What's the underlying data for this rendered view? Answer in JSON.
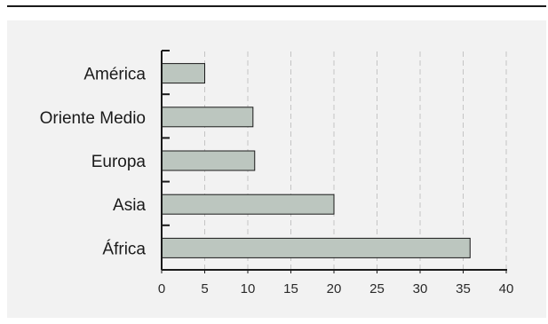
{
  "chart_data": {
    "type": "bar",
    "orientation": "horizontal",
    "categories": [
      "América",
      "Oriente Medio",
      "Europa",
      "Asia",
      "África"
    ],
    "values": [
      5,
      10.6,
      10.8,
      20,
      35.8
    ],
    "xlim": [
      0,
      40
    ],
    "xticks": [
      "0",
      "5",
      "10",
      "15",
      "20",
      "25",
      "30",
      "35",
      "40"
    ],
    "title": "",
    "xlabel": "",
    "ylabel": "",
    "grid": "vertical dashed",
    "legend": "none",
    "colors": {
      "bar_fill": "#bcc6bf",
      "bar_stroke": "#1a1a1a",
      "panel_bg": "#f2f2f2",
      "grid": "#c4c4c4",
      "axis": "#1a1a1a"
    }
  }
}
